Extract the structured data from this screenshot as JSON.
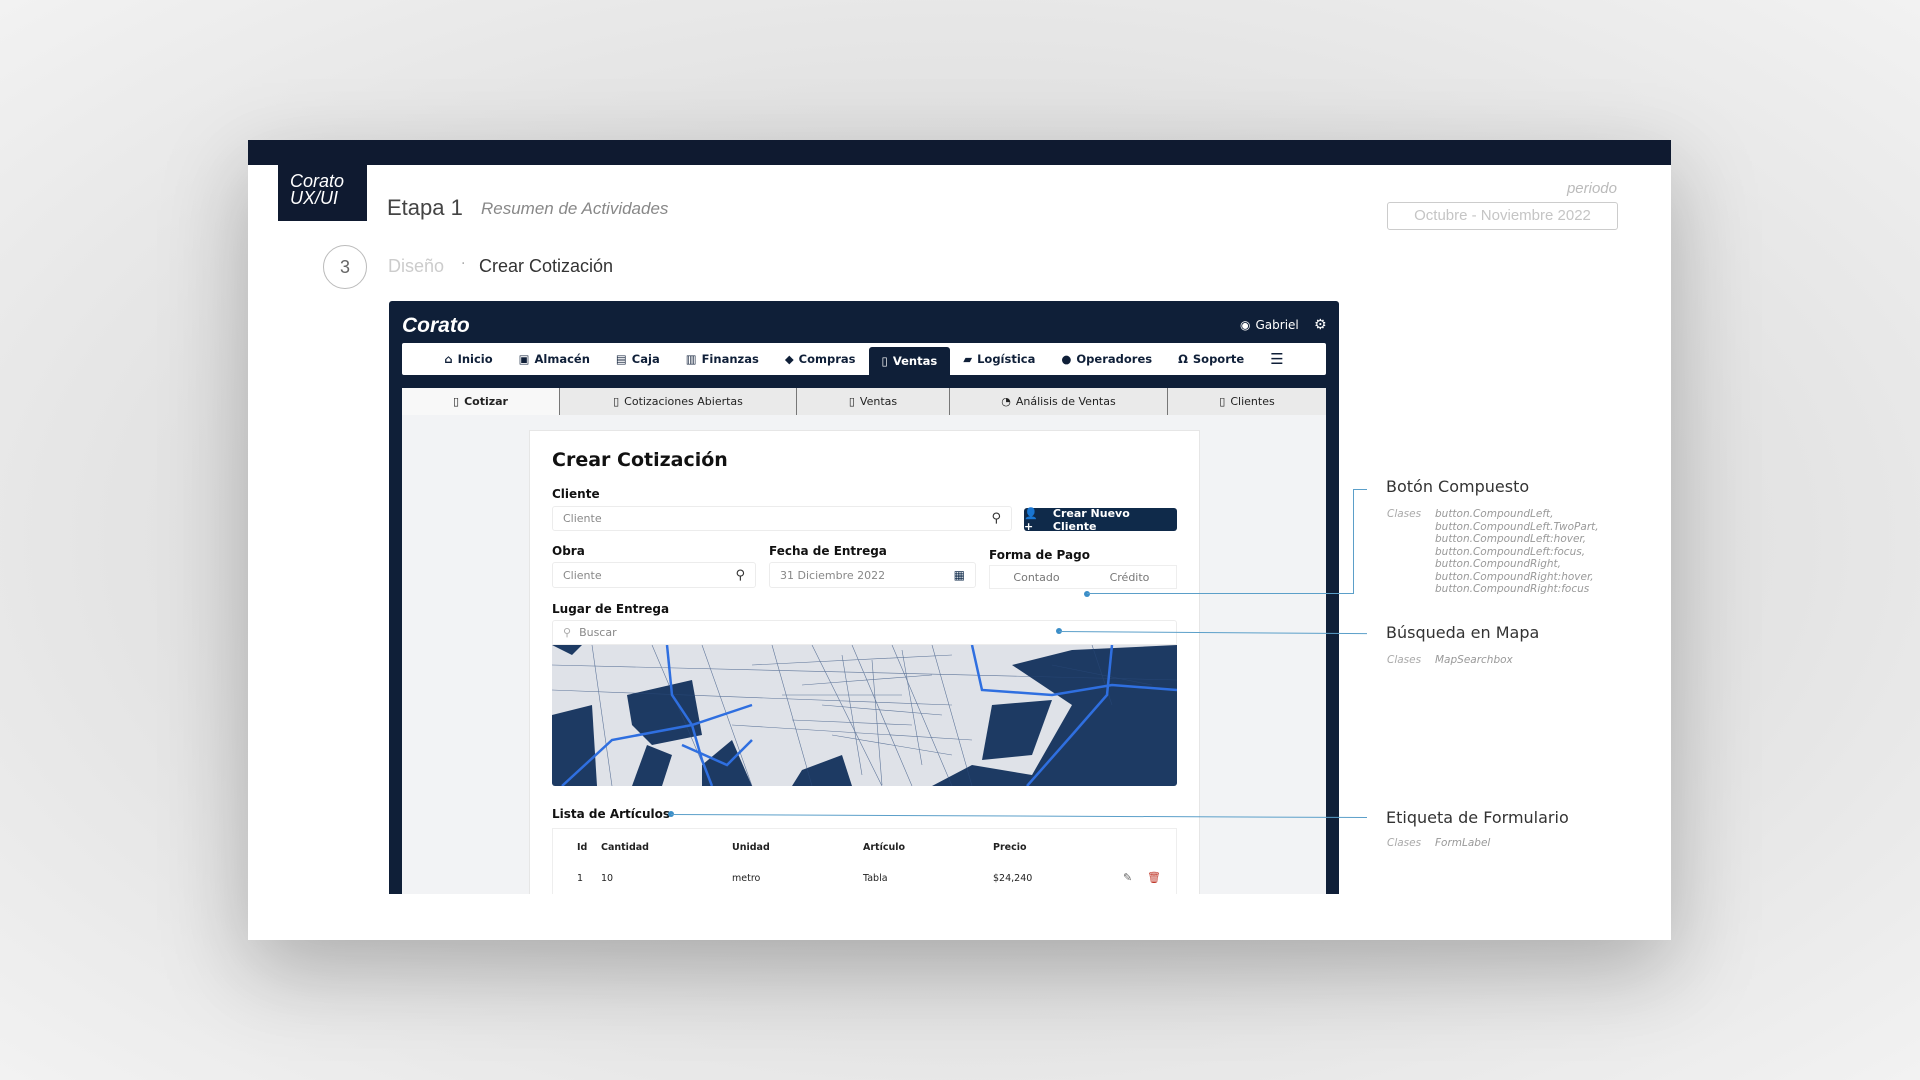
{
  "presentation": {
    "logo": [
      "Corato",
      "UX/UI"
    ],
    "stage": "Etapa 1",
    "stage_subtitle": "Resumen de Actividades",
    "period_label": "periodo",
    "period_value": "Octubre - Noviembre  2022",
    "step_number": "3",
    "breadcrumb": {
      "section": "Diseño",
      "separator": "·",
      "page": "Crear Cotización"
    }
  },
  "app": {
    "brand": "Corato",
    "user": "Gabriel",
    "nav": [
      {
        "label": "Inicio",
        "icon": "home-icon"
      },
      {
        "label": "Almacén",
        "icon": "warehouse-icon"
      },
      {
        "label": "Caja",
        "icon": "cash-register-icon"
      },
      {
        "label": "Finanzas",
        "icon": "money-icon"
      },
      {
        "label": "Compras",
        "icon": "tag-icon"
      },
      {
        "label": "Ventas",
        "icon": "document-icon",
        "active": true
      },
      {
        "label": "Logística",
        "icon": "truck-icon"
      },
      {
        "label": "Operadores",
        "icon": "person-icon"
      },
      {
        "label": "Soporte",
        "icon": "headset-icon"
      }
    ],
    "subnav": [
      {
        "label": "Cotizar",
        "active": true
      },
      {
        "label": "Cotizaciones Abiertas"
      },
      {
        "label": "Ventas"
      },
      {
        "label": "Análisis de Ventas"
      },
      {
        "label": "Clientes"
      }
    ],
    "form": {
      "title": "Crear Cotización",
      "cliente_label": "Cliente",
      "cliente_placeholder": "Cliente",
      "new_client_button": "Crear Nuevo Cliente",
      "obra_label": "Obra",
      "obra_placeholder": "Cliente",
      "fecha_label": "Fecha de Entrega",
      "fecha_value": "31 Diciembre 2022",
      "pago_label": "Forma de Pago",
      "pago_options": [
        "Contado",
        "Crédito"
      ],
      "lugar_label": "Lugar de Entrega",
      "map_search_placeholder": "Buscar",
      "lista_label": "Lista de Artículos",
      "table": {
        "headers": [
          "Id",
          "Cantidad",
          "Unidad",
          "Artículo",
          "Precio"
        ],
        "rows": [
          [
            "1",
            "10",
            "metro",
            "Tabla",
            "$24,240"
          ]
        ]
      }
    }
  },
  "annotations": [
    {
      "title": "Botón Compuesto",
      "classes_label": "Clases",
      "classes": [
        "button.CompoundLeft,",
        "button.CompoundLeft.TwoPart,",
        "button.CompoundLeft:hover,",
        "button.CompoundLeft:focus,",
        "button.CompoundRight,",
        "button.CompoundRight:hover,",
        "button.CompoundRight:focus"
      ]
    },
    {
      "title": "Búsqueda en Mapa",
      "classes_label": "Clases",
      "classes": [
        "MapSearchbox"
      ]
    },
    {
      "title": "Etiqueta de Formulario",
      "classes_label": "Clases",
      "classes": [
        "FormLabel"
      ]
    }
  ],
  "colors": {
    "navy": "#0f1f38",
    "annotation_line": "#5b9fc9",
    "delete": "#c0392b"
  }
}
